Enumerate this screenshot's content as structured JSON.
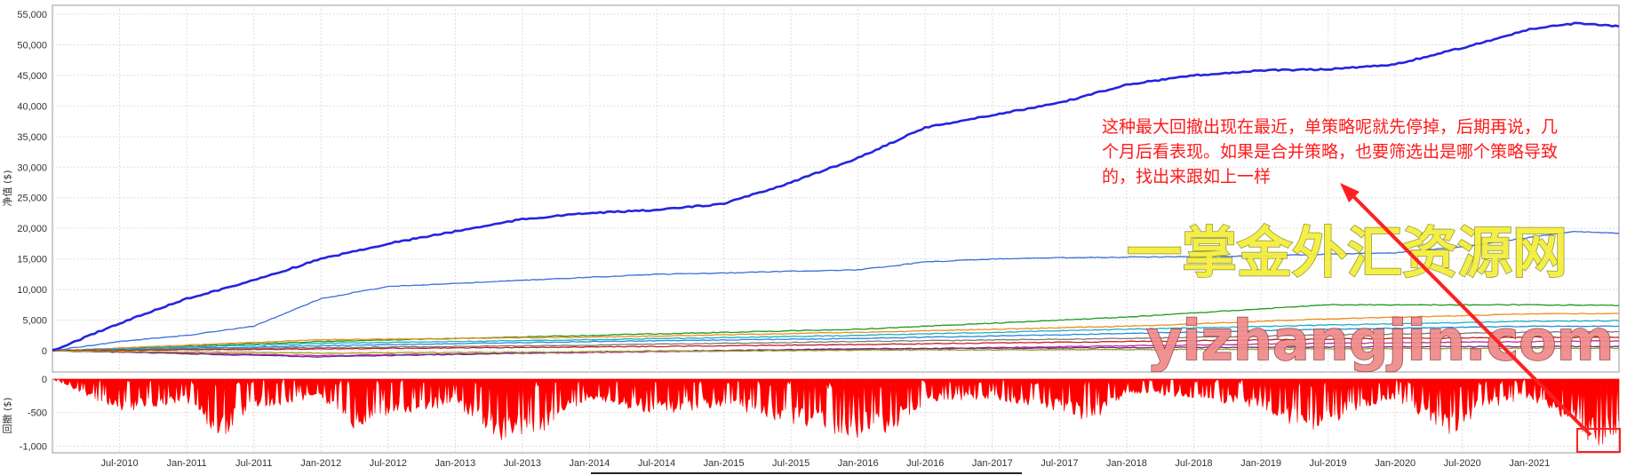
{
  "chart_data": [
    {
      "type": "line",
      "ylabel": "净值 ($)",
      "ylim": [
        0,
        55000
      ],
      "y_ticks": [
        "0",
        "5,000",
        "10,000",
        "15,000",
        "20,000",
        "25,000",
        "30,000",
        "35,000",
        "40,000",
        "45,000",
        "50,000",
        "55,000"
      ],
      "grid": true,
      "x_range": [
        "2010-01",
        "2021-09"
      ],
      "series": [
        {
          "color": "#2424e0",
          "emphasis": true,
          "x": [
            "2010-01",
            "2010-07",
            "2011-01",
            "2011-07",
            "2012-01",
            "2012-07",
            "2013-01",
            "2013-07",
            "2014-01",
            "2014-07",
            "2015-01",
            "2015-07",
            "2016-01",
            "2016-07",
            "2017-01",
            "2017-07",
            "2018-01",
            "2018-07",
            "2019-01",
            "2019-07",
            "2020-01",
            "2020-07",
            "2021-01",
            "2021-05",
            "2021-09"
          ],
          "values": [
            0,
            4500,
            8500,
            11500,
            15000,
            17500,
            19500,
            21500,
            22500,
            23000,
            24000,
            27500,
            31500,
            36500,
            38500,
            40500,
            43500,
            45000,
            45800,
            46000,
            46800,
            49500,
            52500,
            53500,
            53000
          ]
        },
        {
          "color": "#3a6fd8",
          "x": [
            "2010-01",
            "2010-07",
            "2011-01",
            "2011-07",
            "2012-01",
            "2012-07",
            "2013-01",
            "2013-07",
            "2014-01",
            "2014-07",
            "2015-01",
            "2015-07",
            "2016-01",
            "2016-07",
            "2017-01",
            "2017-07",
            "2018-01",
            "2018-07",
            "2019-01",
            "2019-07",
            "2020-01",
            "2020-07",
            "2021-01",
            "2021-05",
            "2021-09"
          ],
          "values": [
            0,
            1500,
            2500,
            4000,
            8500,
            10500,
            11000,
            11500,
            12000,
            12500,
            12700,
            13000,
            13200,
            14500,
            15000,
            15200,
            15300,
            15400,
            15500,
            15800,
            16000,
            17000,
            18500,
            19500,
            19200
          ]
        },
        {
          "color": "#1f9a1f",
          "x": [
            "2010-01",
            "2012-01",
            "2014-01",
            "2016-01",
            "2018-01",
            "2019-07",
            "2021-01",
            "2021-09"
          ],
          "values": [
            0,
            1500,
            2500,
            3500,
            5500,
            7500,
            7500,
            7400
          ]
        },
        {
          "color": "#f08c1e",
          "x": [
            "2010-01",
            "2012-01",
            "2014-01",
            "2016-01",
            "2018-01",
            "2019-07",
            "2021-01",
            "2021-09"
          ],
          "values": [
            0,
            1800,
            2200,
            3000,
            4000,
            5200,
            6000,
            6100
          ]
        },
        {
          "color": "#1ab0c0",
          "x": [
            "2010-01",
            "2012-01",
            "2014-01",
            "2016-01",
            "2018-01",
            "2019-07",
            "2021-01",
            "2021-09"
          ],
          "values": [
            0,
            1200,
            1800,
            2500,
            3500,
            4200,
            4800,
            4900
          ]
        },
        {
          "color": "#2a8ad8",
          "x": [
            "2010-01",
            "2012-01",
            "2014-01",
            "2016-01",
            "2018-01",
            "2019-07",
            "2021-01",
            "2021-09"
          ],
          "values": [
            0,
            800,
            1500,
            2000,
            2800,
            3500,
            4000,
            4000
          ]
        },
        {
          "color": "#7a7a7a",
          "x": [
            "2010-01",
            "2012-01",
            "2014-01",
            "2016-01",
            "2018-01",
            "2019-07",
            "2021-01",
            "2021-09"
          ],
          "values": [
            0,
            500,
            900,
            1500,
            2000,
            2600,
            3000,
            3100
          ]
        },
        {
          "color": "#c02020",
          "x": [
            "2010-01",
            "2012-01",
            "2014-01",
            "2016-01",
            "2018-01",
            "2019-07",
            "2021-01",
            "2021-09"
          ],
          "values": [
            0,
            300,
            600,
            1000,
            1500,
            1900,
            2200,
            2200
          ]
        },
        {
          "color": "#c0299a",
          "x": [
            "2010-01",
            "2012-01",
            "2014-01",
            "2016-01",
            "2018-01",
            "2019-07",
            "2021-01",
            "2021-09"
          ],
          "values": [
            0,
            -800,
            -300,
            200,
            800,
            1200,
            1500,
            1600
          ]
        },
        {
          "color": "#6a2a8a",
          "x": [
            "2010-01",
            "2012-01",
            "2013-01",
            "2014-01",
            "2016-01",
            "2018-01",
            "2021-01",
            "2021-09"
          ],
          "values": [
            0,
            -1000,
            -600,
            -200,
            300,
            500,
            700,
            700
          ]
        },
        {
          "color": "#9aa01a",
          "x": [
            "2010-01",
            "2012-01",
            "2014-01",
            "2016-01",
            "2018-01",
            "2021-01",
            "2021-09"
          ],
          "values": [
            0,
            -400,
            -200,
            100,
            200,
            400,
            400
          ]
        }
      ]
    },
    {
      "type": "area",
      "ylabel": "回撤 ($)",
      "ylim": [
        -1100,
        0
      ],
      "y_ticks": [
        "0",
        "-500",
        "-1,000"
      ],
      "color": "#ff0000",
      "x": [
        "2010-01",
        "2010-07",
        "2011-01",
        "2011-04",
        "2011-07",
        "2012-01",
        "2012-04",
        "2012-07",
        "2013-01",
        "2013-05",
        "2013-08",
        "2013-10",
        "2014-01",
        "2014-07",
        "2015-01",
        "2015-07",
        "2016-01",
        "2016-04",
        "2016-07",
        "2017-01",
        "2017-07",
        "2017-10",
        "2018-01",
        "2018-07",
        "2019-01",
        "2019-06",
        "2019-09",
        "2020-01",
        "2020-06",
        "2020-09",
        "2021-01",
        "2021-04",
        "2021-07",
        "2021-09"
      ],
      "values": [
        0,
        -500,
        -350,
        -900,
        -450,
        -300,
        -750,
        -550,
        -400,
        -900,
        -1050,
        -600,
        -300,
        -550,
        -400,
        -700,
        -900,
        -850,
        -350,
        -300,
        -500,
        -700,
        -200,
        -300,
        -450,
        -900,
        -500,
        -300,
        -850,
        -450,
        -300,
        -600,
        -1050,
        -850
      ]
    }
  ],
  "x_axis": {
    "tick_labels": [
      "Jul-2010",
      "Jan-2011",
      "Jul-2011",
      "Jan-2012",
      "Jul-2012",
      "Jan-2013",
      "Jul-2013",
      "Jan-2014",
      "Jul-2014",
      "Jan-2015",
      "Jul-2015",
      "Jan-2016",
      "Jul-2016",
      "Jan-2017",
      "Jul-2017",
      "Jan-2018",
      "Jul-2018",
      "Jan-2019",
      "Jul-2019",
      "Jan-2020",
      "Jul-2020",
      "Jan-2021"
    ]
  },
  "annotation": {
    "lines": [
      "这种最大回撤出现在最近，单策略呢就先停掉，后期再说，几",
      "个月后看表现。如果是合并策略，也要筛选出是哪个策略导致",
      "的，找出来跟如上一样"
    ],
    "color": "#ff1a1a"
  },
  "watermark": {
    "chinese": "一掌金外汇资源网",
    "url": "yizhangjin.com"
  }
}
